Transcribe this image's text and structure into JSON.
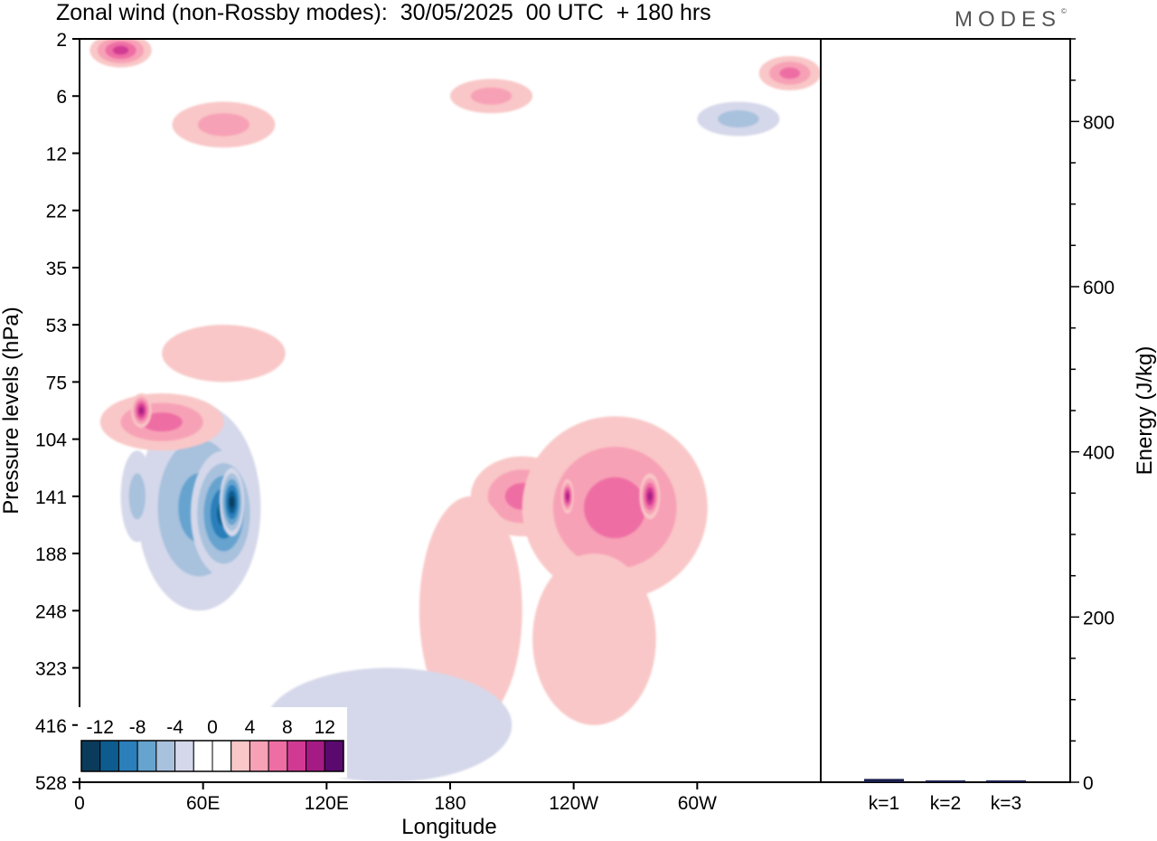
{
  "title": "Zonal wind (non-Rossby modes):  30/05/2025  00 UTC  + 180 hrs",
  "logo": "MODES",
  "logo_mark": "©",
  "chart_data": [
    {
      "type": "heatmap",
      "variable": "Zonal wind (non-Rossby modes)",
      "xlabel": "Longitude",
      "ylabel": "Pressure levels (hPa)",
      "x_ticks": [
        "0",
        "60E",
        "120E",
        "180",
        "120W",
        "60W"
      ],
      "y_ticks": [
        "2",
        "6",
        "12",
        "22",
        "35",
        "53",
        "75",
        "104",
        "141",
        "188",
        "248",
        "323",
        "416",
        "528"
      ],
      "colorbar": {
        "labels": [
          "-12",
          "-8",
          "-4",
          "0",
          "4",
          "8",
          "12"
        ],
        "colors": [
          "#0b3b5a",
          "#0e5c8f",
          "#2b7fba",
          "#66a3cf",
          "#a8c1dd",
          "#d5d8ea",
          "#ffffff",
          "#ffffff",
          "#f9c7c7",
          "#f7a1b6",
          "#ee6ea4",
          "#d13a93",
          "#a51b83",
          "#5a0a6e"
        ]
      },
      "regions": [
        {
          "lon": 58,
          "lev": 8.2,
          "rlon": 30,
          "rlev": 1.8,
          "value": -6
        },
        {
          "lon": 70,
          "lev": 8.3,
          "rlon": 16,
          "rlev": 1.1,
          "value": -10
        },
        {
          "lon": 74,
          "lev": 8.1,
          "rlon": 6,
          "rlev": 0.6,
          "value": -13
        },
        {
          "lon": 28,
          "lev": 8.0,
          "rlon": 8,
          "rlev": 0.8,
          "value": -4
        },
        {
          "lon": 40,
          "lev": 6.7,
          "rlon": 30,
          "rlev": 0.5,
          "value": 6
        },
        {
          "lon": 30,
          "lev": 6.5,
          "rlon": 5,
          "rlev": 0.3,
          "value": 10
        },
        {
          "lon": 70,
          "lev": 5.5,
          "rlon": 30,
          "rlev": 0.5,
          "value": 3
        },
        {
          "lon": 20,
          "lev": 0.2,
          "rlon": 15,
          "rlev": 0.3,
          "value": 8
        },
        {
          "lon": 70,
          "lev": 1.5,
          "rlon": 25,
          "rlev": 0.4,
          "value": 5
        },
        {
          "lon": 215,
          "lev": 8.0,
          "rlon": 25,
          "rlev": 0.7,
          "value": 6
        },
        {
          "lon": 260,
          "lev": 8.2,
          "rlon": 45,
          "rlev": 1.6,
          "value": 6
        },
        {
          "lon": 277,
          "lev": 8.0,
          "rlon": 5,
          "rlev": 0.4,
          "value": 10
        },
        {
          "lon": 237,
          "lev": 8.0,
          "rlon": 3,
          "rlev": 0.3,
          "value": 10
        },
        {
          "lon": 190,
          "lev": 10.0,
          "rlon": 25,
          "rlev": 2.0,
          "value": 3
        },
        {
          "lon": 250,
          "lev": 10.5,
          "rlon": 30,
          "rlev": 1.5,
          "value": 3
        },
        {
          "lon": 150,
          "lev": 12.0,
          "rlon": 60,
          "rlev": 1.0,
          "value": -2
        },
        {
          "lon": 200,
          "lev": 1.0,
          "rlon": 20,
          "rlev": 0.3,
          "value": 5
        },
        {
          "lon": 320,
          "lev": 1.4,
          "rlon": 20,
          "rlev": 0.3,
          "value": -4
        },
        {
          "lon": 345,
          "lev": 0.6,
          "rlon": 15,
          "rlev": 0.3,
          "value": 6
        }
      ]
    },
    {
      "type": "bar",
      "categories": [
        "k=1",
        "k=2",
        "k=3"
      ],
      "values": [
        4,
        2,
        1.5
      ],
      "ylabel": "Energy (J/kg)",
      "y_ticks": [
        "0",
        "200",
        "400",
        "600",
        "800"
      ],
      "ylim": [
        0,
        900
      ]
    }
  ]
}
